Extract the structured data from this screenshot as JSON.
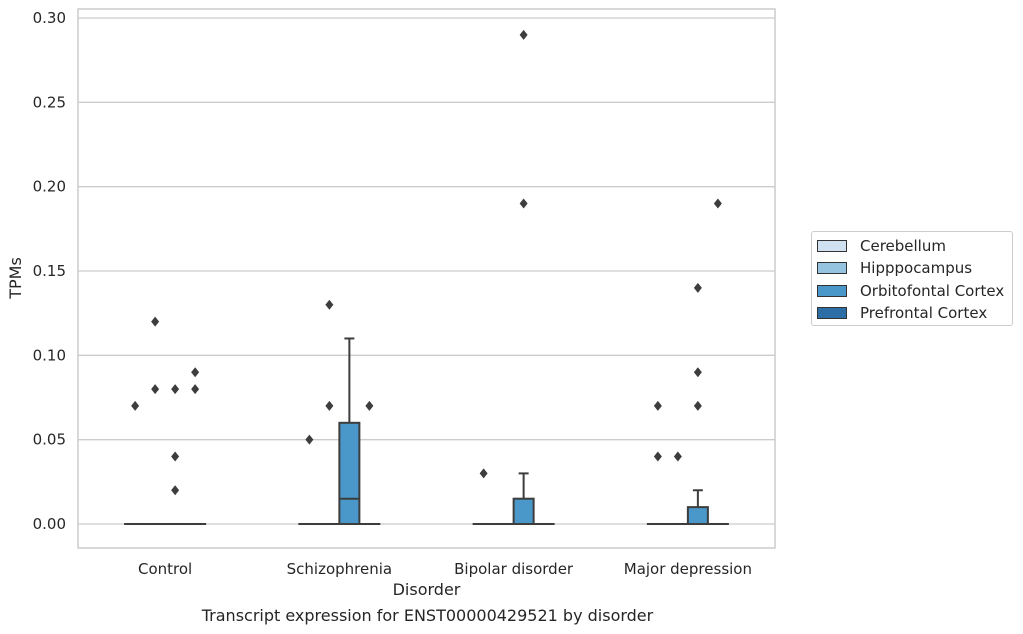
{
  "chart_data": {
    "type": "box",
    "caption": "Transcript expression for ENST00000429521 by disorder",
    "xlabel": "Disorder",
    "ylabel": "TPMs",
    "categories": [
      "Control",
      "Schizophrenia",
      "Bipolar disorder",
      "Major depression"
    ],
    "ylim": [
      -0.014,
      0.305
    ],
    "yticks": [
      0.0,
      0.05,
      0.1,
      0.15,
      0.2,
      0.25,
      0.3
    ],
    "ytick_labels": [
      "0.00",
      "0.05",
      "0.10",
      "0.15",
      "0.20",
      "0.25",
      "0.30"
    ],
    "grid": true,
    "legend_position": "right",
    "series": [
      {
        "name": "Cerebellum",
        "color": "#d0e1f2",
        "boxes": [
          {
            "q1": 0,
            "median": 0,
            "q3": 0,
            "whisker_low": 0,
            "whisker_high": 0,
            "outliers": [
              0.07
            ]
          },
          {
            "q1": 0,
            "median": 0,
            "q3": 0,
            "whisker_low": 0,
            "whisker_high": 0,
            "outliers": [
              0.05
            ]
          },
          {
            "q1": 0,
            "median": 0,
            "q3": 0,
            "whisker_low": 0,
            "whisker_high": 0,
            "outliers": [
              0.03
            ]
          },
          {
            "q1": 0,
            "median": 0,
            "q3": 0,
            "whisker_low": 0,
            "whisker_high": 0,
            "outliers": [
              0.07,
              0.04
            ]
          }
        ]
      },
      {
        "name": "Hipppocampus",
        "color": "#94c4df",
        "boxes": [
          {
            "q1": 0,
            "median": 0,
            "q3": 0,
            "whisker_low": 0,
            "whisker_high": 0,
            "outliers": [
              0.12,
              0.08
            ]
          },
          {
            "q1": 0,
            "median": 0,
            "q3": 0,
            "whisker_low": 0,
            "whisker_high": 0,
            "outliers": [
              0.13,
              0.07
            ]
          },
          {
            "q1": 0,
            "median": 0,
            "q3": 0,
            "whisker_low": 0,
            "whisker_high": 0,
            "outliers": []
          },
          {
            "q1": 0,
            "median": 0,
            "q3": 0,
            "whisker_low": 0,
            "whisker_high": 0,
            "outliers": [
              0.04
            ]
          }
        ]
      },
      {
        "name": "Orbitofontal Cortex",
        "color": "#4a98c9",
        "boxes": [
          {
            "q1": 0,
            "median": 0,
            "q3": 0,
            "whisker_low": 0,
            "whisker_high": 0,
            "outliers": [
              0.08,
              0.04,
              0.02
            ]
          },
          {
            "q1": 0,
            "median": 0.015,
            "q3": 0.06,
            "whisker_low": 0,
            "whisker_high": 0.11,
            "outliers": []
          },
          {
            "q1": 0,
            "median": 0,
            "q3": 0.015,
            "whisker_low": 0,
            "whisker_high": 0.03,
            "outliers": [
              0.29,
              0.19
            ]
          },
          {
            "q1": 0,
            "median": 0,
            "q3": 0.01,
            "whisker_low": 0,
            "whisker_high": 0.02,
            "outliers": [
              0.14,
              0.09,
              0.07
            ]
          }
        ]
      },
      {
        "name": "Prefrontal Cortex",
        "color": "#2e6ea6",
        "boxes": [
          {
            "q1": 0,
            "median": 0,
            "q3": 0,
            "whisker_low": 0,
            "whisker_high": 0,
            "outliers": [
              0.09,
              0.08
            ]
          },
          {
            "q1": 0,
            "median": 0,
            "q3": 0,
            "whisker_low": 0,
            "whisker_high": 0,
            "outliers": [
              0.07
            ]
          },
          {
            "q1": 0,
            "median": 0,
            "q3": 0,
            "whisker_low": 0,
            "whisker_high": 0,
            "outliers": []
          },
          {
            "q1": 0,
            "median": 0,
            "q3": 0,
            "whisker_low": 0,
            "whisker_high": 0,
            "outliers": [
              0.19
            ]
          }
        ]
      }
    ]
  }
}
